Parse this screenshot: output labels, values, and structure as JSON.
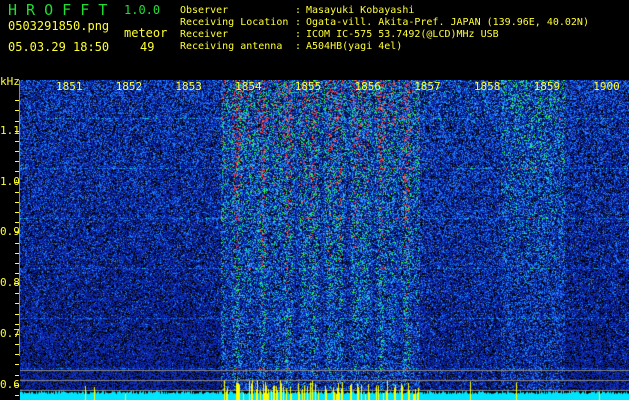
{
  "header": {
    "app_name": "H R O F F T",
    "version": "1.0.0",
    "filename": "0503291850.png",
    "datetime": "05.03.29 18:50",
    "meteor_label": "meteor",
    "meteor_count": "49"
  },
  "info": [
    {
      "label": "Observer",
      "sep": ":",
      "value": "Masayuki Kobayashi"
    },
    {
      "label": "Receiving Location",
      "sep": ":",
      "value": "Ogata-vill. Akita-Pref. JAPAN (139.96E, 40.02N)"
    },
    {
      "label": "Receiver",
      "sep": ":",
      "value": "ICOM IC-575 53.7492(@LCD)MHz USB"
    },
    {
      "label": "Receiving antenna",
      "sep": ":",
      "value": "A504HB(yagi 4el)"
    }
  ],
  "colors": {
    "text": "#ffff33",
    "title": "#22dd33",
    "floor": "#00e5ff",
    "spike": "#ffff00",
    "background": "#000000"
  },
  "chart_data": {
    "type": "heatmap",
    "ylabel": "kHz",
    "ylim": [
      0.57,
      1.2
    ],
    "y_ticks": [
      "1.1",
      "1.0",
      "0.9",
      "0.8",
      "0.7",
      "0.6"
    ],
    "x_ticks": [
      "1851",
      "1852",
      "1853",
      "1854",
      "1855",
      "1856",
      "1857",
      "1858",
      "1859",
      "1900"
    ],
    "xlim": [
      "18:50",
      "19:00"
    ],
    "notes_on_activity": "strongest echo activity between 1854 and 1857, secondary around 1858-1859"
  }
}
